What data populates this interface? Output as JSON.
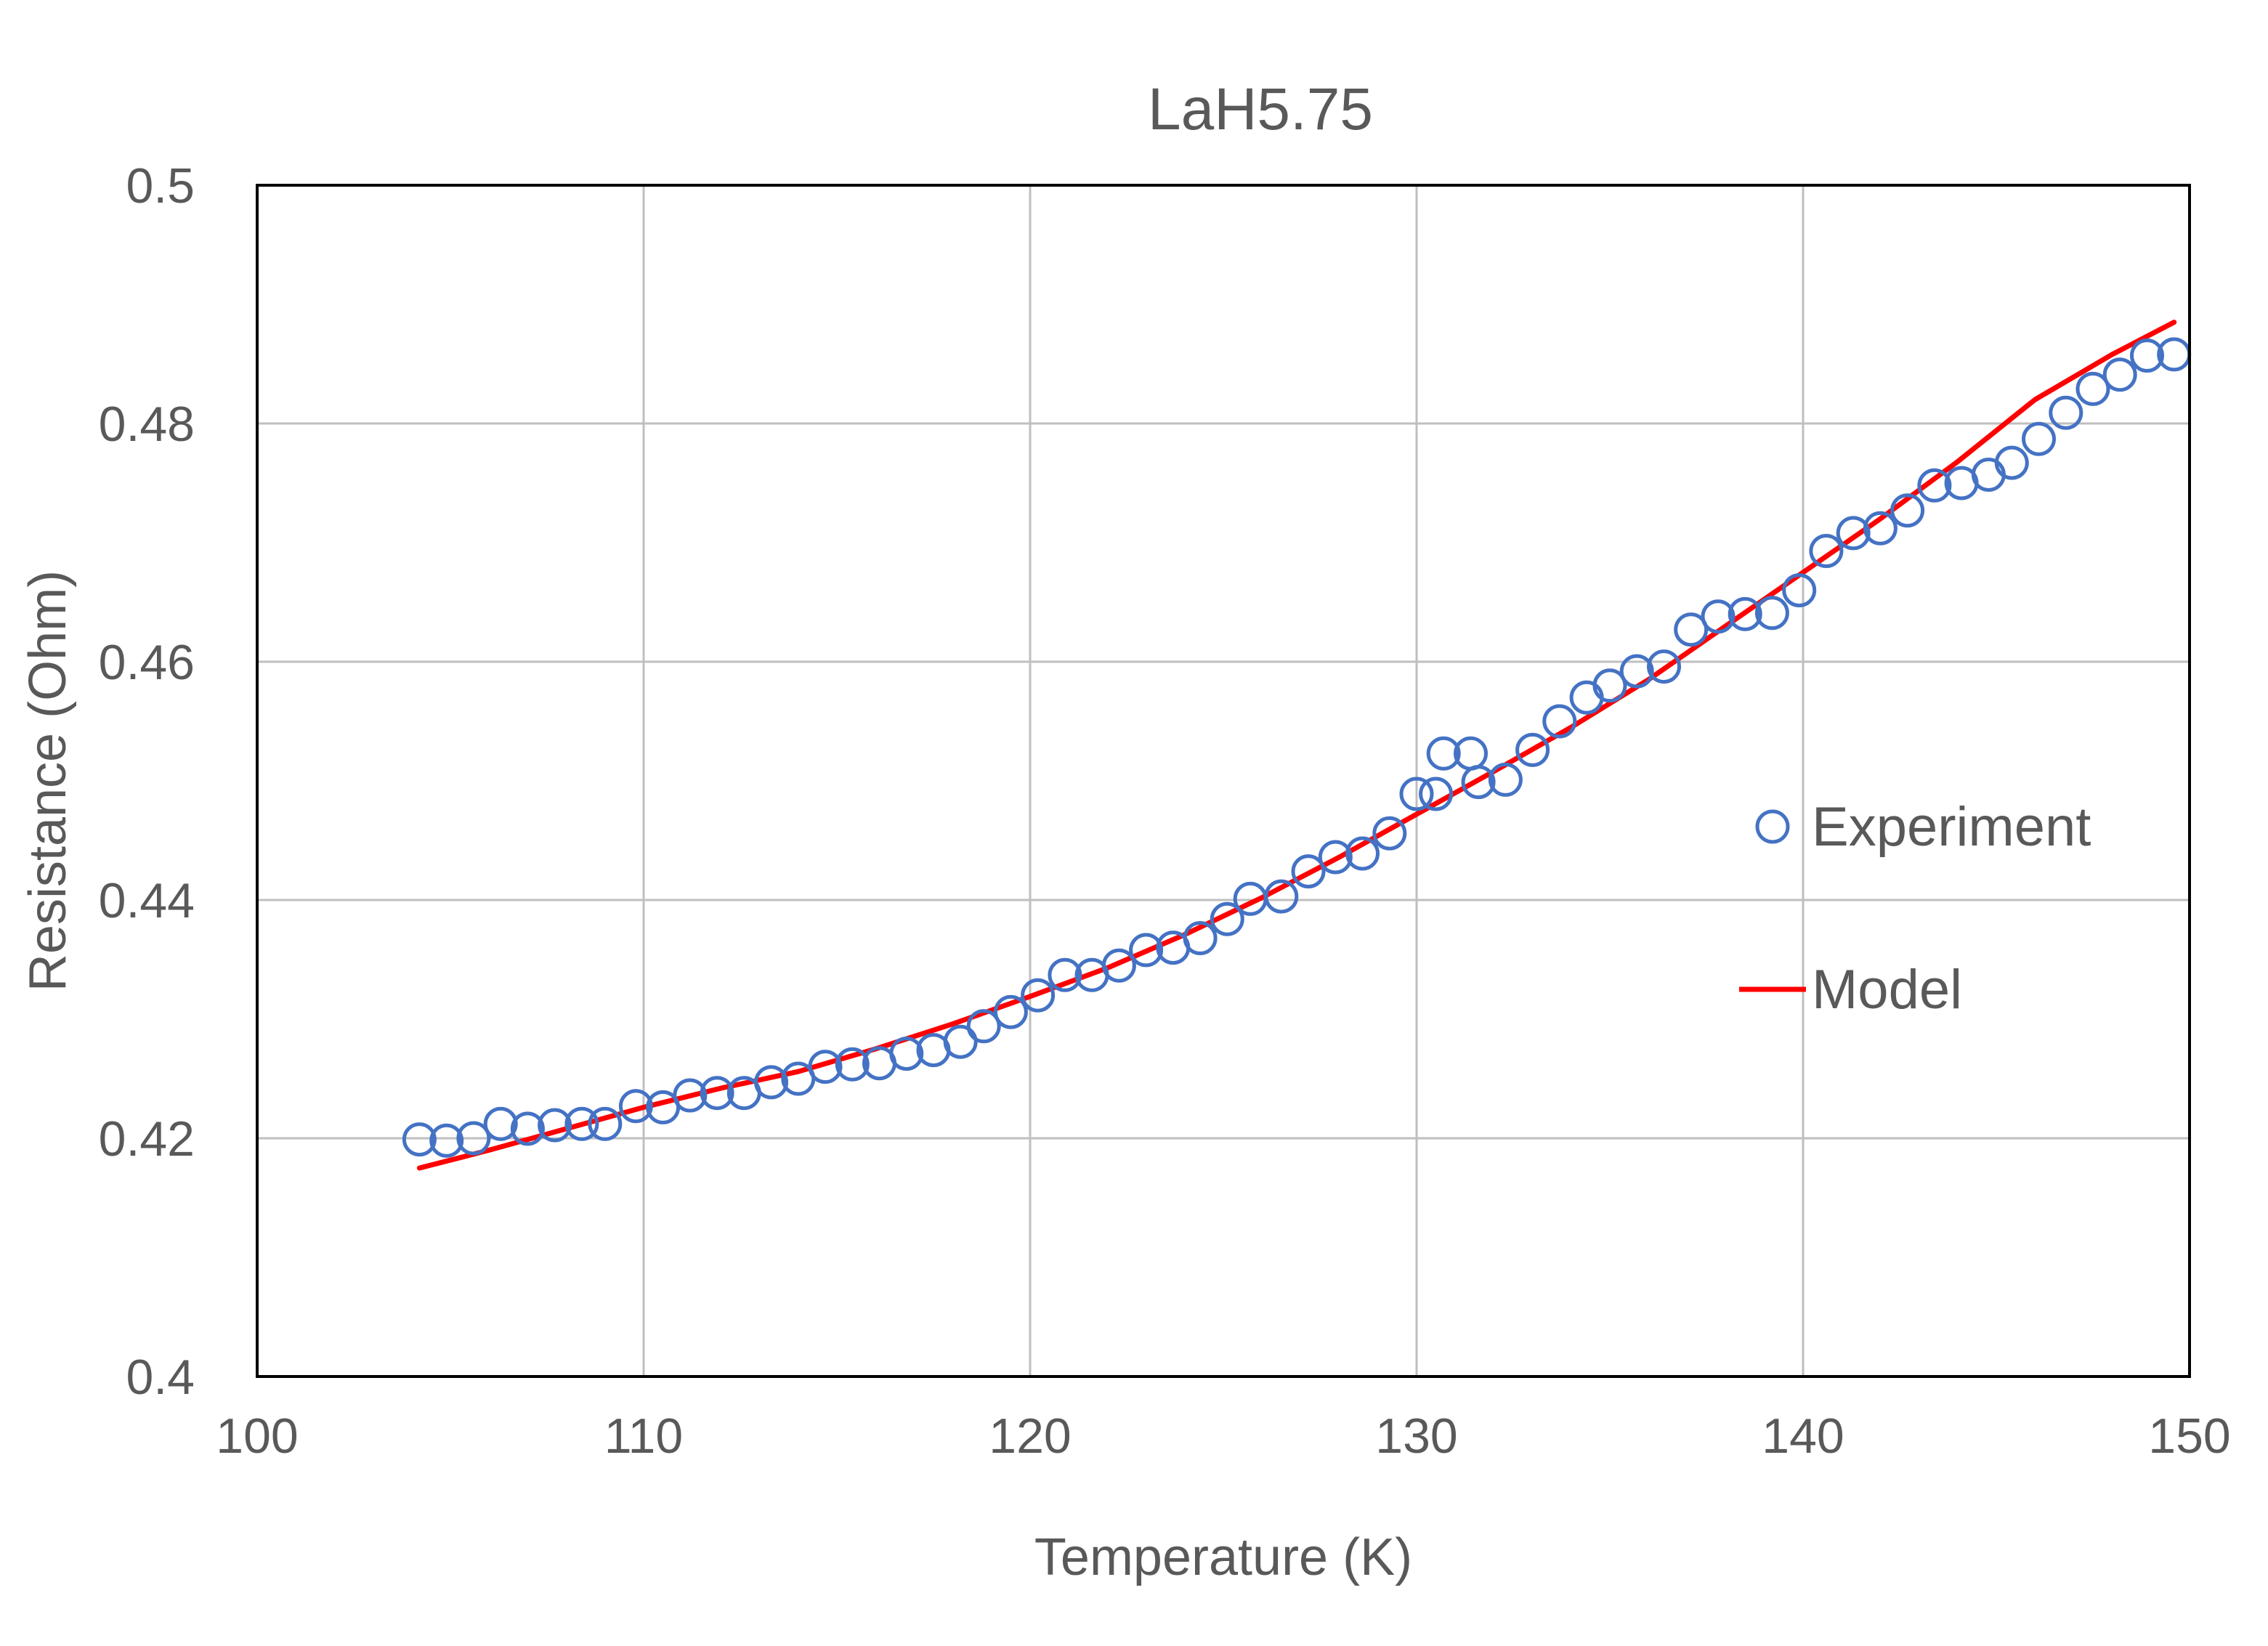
{
  "chart_data": {
    "type": "scatter",
    "title": "LaH5.75",
    "xlabel": "Temperature (K)",
    "ylabel": "Resistance (Ohm)",
    "xlim": [
      100,
      150
    ],
    "ylim": [
      0.4,
      0.5
    ],
    "x_ticks": [
      100,
      110,
      120,
      130,
      140,
      150
    ],
    "x_tick_labels": [
      "100",
      "110",
      "120",
      "130",
      "140",
      "150"
    ],
    "y_ticks": [
      0.4,
      0.42,
      0.44,
      0.46,
      0.48,
      0.5
    ],
    "y_tick_labels": [
      "0.4",
      "0.42",
      "0.44",
      "0.46",
      "0.48",
      "0.5"
    ],
    "grid": true,
    "legend_position": "right",
    "series": [
      {
        "name": "Experiment",
        "kind": "scatter",
        "marker": "open-circle",
        "color": "#4472C4",
        "points": [
          [
            104.2,
            0.4199
          ],
          [
            104.9,
            0.4198
          ],
          [
            105.6,
            0.42
          ],
          [
            106.3,
            0.4212
          ],
          [
            107.0,
            0.4208
          ],
          [
            107.7,
            0.4211
          ],
          [
            108.4,
            0.4212
          ],
          [
            109.0,
            0.4212
          ],
          [
            109.8,
            0.4227
          ],
          [
            110.5,
            0.4226
          ],
          [
            111.2,
            0.4236
          ],
          [
            111.9,
            0.4238
          ],
          [
            112.6,
            0.4238
          ],
          [
            113.3,
            0.4247
          ],
          [
            114.0,
            0.425
          ],
          [
            114.7,
            0.426
          ],
          [
            115.4,
            0.4262
          ],
          [
            116.1,
            0.4263
          ],
          [
            116.8,
            0.4271
          ],
          [
            117.5,
            0.4274
          ],
          [
            118.2,
            0.4281
          ],
          [
            118.8,
            0.4294
          ],
          [
            119.5,
            0.4306
          ],
          [
            120.2,
            0.432
          ],
          [
            120.9,
            0.4337
          ],
          [
            121.6,
            0.4337
          ],
          [
            122.3,
            0.4345
          ],
          [
            123.0,
            0.4358
          ],
          [
            123.7,
            0.436
          ],
          [
            124.4,
            0.4368
          ],
          [
            125.1,
            0.4384
          ],
          [
            125.7,
            0.4401
          ],
          [
            126.5,
            0.4403
          ],
          [
            127.2,
            0.4424
          ],
          [
            127.9,
            0.4436
          ],
          [
            128.6,
            0.4439
          ],
          [
            129.3,
            0.4456
          ],
          [
            130.0,
            0.4489
          ],
          [
            130.5,
            0.4489
          ],
          [
            130.7,
            0.4523
          ],
          [
            131.4,
            0.4523
          ],
          [
            131.6,
            0.4499
          ],
          [
            132.3,
            0.4501
          ],
          [
            133.0,
            0.4526
          ],
          [
            133.7,
            0.455
          ],
          [
            134.4,
            0.457
          ],
          [
            135.0,
            0.458
          ],
          [
            135.7,
            0.4592
          ],
          [
            136.4,
            0.4596
          ],
          [
            137.1,
            0.4627
          ],
          [
            137.8,
            0.4638
          ],
          [
            138.5,
            0.464
          ],
          [
            139.2,
            0.4641
          ],
          [
            139.9,
            0.466
          ],
          [
            140.6,
            0.4693
          ],
          [
            141.3,
            0.4708
          ],
          [
            142.0,
            0.4712
          ],
          [
            142.7,
            0.4727
          ],
          [
            143.4,
            0.4748
          ],
          [
            144.1,
            0.475
          ],
          [
            144.8,
            0.4757
          ],
          [
            145.4,
            0.4767
          ],
          [
            146.1,
            0.4787
          ],
          [
            146.8,
            0.4809
          ],
          [
            147.5,
            0.4829
          ],
          [
            148.2,
            0.4841
          ],
          [
            148.9,
            0.4857
          ],
          [
            149.6,
            0.4858
          ]
        ]
      },
      {
        "name": "Model",
        "kind": "line",
        "color": "#FF0000",
        "points": [
          [
            104.2,
            0.4175
          ],
          [
            106.0,
            0.419
          ],
          [
            108.0,
            0.4208
          ],
          [
            110.0,
            0.4226
          ],
          [
            112.0,
            0.4242
          ],
          [
            114.0,
            0.4256
          ],
          [
            116.0,
            0.4275
          ],
          [
            118.0,
            0.4296
          ],
          [
            120.0,
            0.4319
          ],
          [
            122.0,
            0.4343
          ],
          [
            124.0,
            0.4371
          ],
          [
            126.0,
            0.4402
          ],
          [
            128.0,
            0.4436
          ],
          [
            130.0,
            0.4472
          ],
          [
            132.0,
            0.4508
          ],
          [
            134.0,
            0.4545
          ],
          [
            136.0,
            0.4585
          ],
          [
            138.0,
            0.463
          ],
          [
            140.0,
            0.4675
          ],
          [
            142.0,
            0.472
          ],
          [
            144.0,
            0.4768
          ],
          [
            146.0,
            0.482
          ],
          [
            148.0,
            0.4858
          ],
          [
            149.6,
            0.4885
          ]
        ]
      }
    ]
  }
}
